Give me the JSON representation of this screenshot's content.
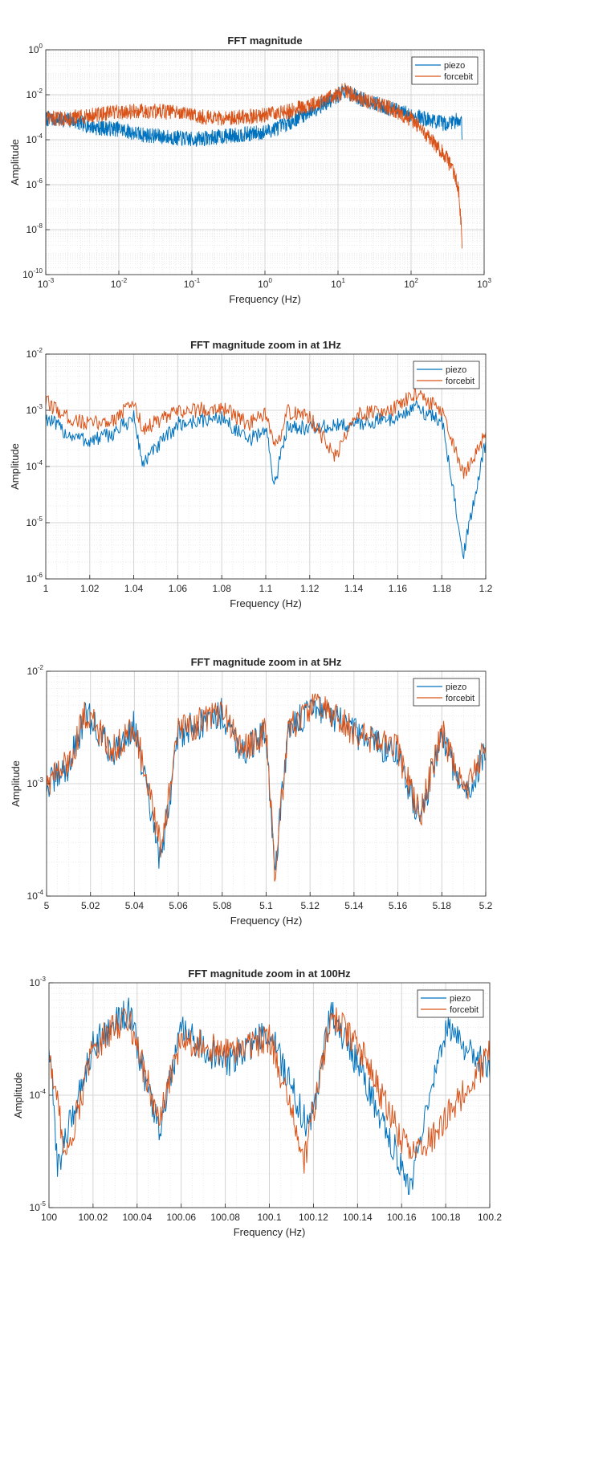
{
  "figure": {
    "legend_labels": [
      "piezo",
      "forcebit"
    ],
    "colors": {
      "piezo": "#0072BD",
      "forcebit": "#D95319",
      "grid_major": "#d4d4d4",
      "grid_minor": "#e6e6e6",
      "axis": "#262626"
    }
  },
  "chart_data": [
    {
      "type": "line",
      "title": "FFT magnitude",
      "xlabel": "Frequency (Hz)",
      "ylabel": "Amplitude",
      "xscale": "log",
      "yscale": "log",
      "xlim": [
        0.001,
        1000
      ],
      "ylim": [
        1e-10,
        1
      ],
      "xticks": [
        {
          "base": "10",
          "exp": "-3"
        },
        {
          "base": "10",
          "exp": "-2"
        },
        {
          "base": "10",
          "exp": "-1"
        },
        {
          "base": "10",
          "exp": "0"
        },
        {
          "base": "10",
          "exp": "1"
        },
        {
          "base": "10",
          "exp": "2"
        },
        {
          "base": "10",
          "exp": "3"
        }
      ],
      "yticks": [
        {
          "base": "10",
          "exp": "-10"
        },
        {
          "base": "10",
          "exp": "-8"
        },
        {
          "base": "10",
          "exp": "-6"
        },
        {
          "base": "10",
          "exp": "-4"
        },
        {
          "base": "10",
          "exp": "-2"
        },
        {
          "base": "10",
          "exp": "0"
        }
      ],
      "legend": "top-right",
      "grid": true,
      "series": [
        {
          "name": "piezo",
          "x": [
            0.001,
            0.002,
            0.005,
            0.01,
            0.02,
            0.05,
            0.1,
            0.2,
            0.5,
            1,
            2,
            5,
            10,
            12,
            20,
            50,
            100,
            200,
            300,
            400,
            450,
            490,
            500
          ],
          "y": [
            0.001,
            0.0009,
            0.0004,
            0.00035,
            0.0002,
            0.00015,
            0.00012,
            0.00015,
            0.0002,
            0.00025,
            0.0006,
            0.003,
            0.01,
            0.018,
            0.008,
            0.003,
            0.0015,
            0.0008,
            0.0006,
            0.0008,
            0.001,
            0.0008,
            0.0001
          ]
        },
        {
          "name": "forcebit",
          "x": [
            0.001,
            0.002,
            0.005,
            0.01,
            0.02,
            0.05,
            0.1,
            0.2,
            0.5,
            1,
            2,
            5,
            10,
            12,
            20,
            50,
            100,
            200,
            300,
            400,
            450,
            490,
            500
          ],
          "y": [
            0.001,
            0.001,
            0.0015,
            0.002,
            0.0022,
            0.002,
            0.0015,
            0.001,
            0.0012,
            0.0015,
            0.002,
            0.005,
            0.012,
            0.02,
            0.008,
            0.003,
            0.001,
            0.0001,
            2e-05,
            3e-06,
            5e-07,
            1e-08,
            2e-09
          ]
        }
      ]
    },
    {
      "type": "line",
      "title": "FFT magnitude zoom in at 1Hz",
      "xlabel": "Frequency (Hz)",
      "ylabel": "Amplitude",
      "xscale": "linear",
      "yscale": "log",
      "xlim": [
        1,
        1.2
      ],
      "ylim": [
        1e-06,
        0.01
      ],
      "xticks": [
        {
          "label": "1"
        },
        {
          "label": "1.02"
        },
        {
          "label": "1.04"
        },
        {
          "label": "1.06"
        },
        {
          "label": "1.08"
        },
        {
          "label": "1.1"
        },
        {
          "label": "1.12"
        },
        {
          "label": "1.14"
        },
        {
          "label": "1.16"
        },
        {
          "label": "1.18"
        },
        {
          "label": "1.2"
        }
      ],
      "yticks": [
        {
          "base": "10",
          "exp": "-6"
        },
        {
          "base": "10",
          "exp": "-5"
        },
        {
          "base": "10",
          "exp": "-4"
        },
        {
          "base": "10",
          "exp": "-3"
        },
        {
          "base": "10",
          "exp": "-2"
        }
      ],
      "legend": "top-right",
      "grid": true,
      "series": [
        {
          "name": "piezo",
          "x": [
            1,
            1.01,
            1.02,
            1.03,
            1.04,
            1.044,
            1.06,
            1.08,
            1.092,
            1.1,
            1.104,
            1.11,
            1.12,
            1.14,
            1.16,
            1.168,
            1.18,
            1.19,
            1.2
          ],
          "y": [
            0.0008,
            0.0004,
            0.0003,
            0.0004,
            0.0008,
            0.00012,
            0.0006,
            0.0008,
            0.0003,
            0.0005,
            5e-05,
            0.0006,
            0.0005,
            0.0006,
            0.0008,
            0.0012,
            0.0007,
            3e-06,
            0.0003
          ]
        },
        {
          "name": "forcebit",
          "x": [
            1,
            1.01,
            1.02,
            1.03,
            1.04,
            1.044,
            1.06,
            1.08,
            1.092,
            1.1,
            1.104,
            1.11,
            1.12,
            1.132,
            1.14,
            1.16,
            1.168,
            1.18,
            1.19,
            1.2
          ],
          "y": [
            0.0015,
            0.0008,
            0.0006,
            0.0007,
            0.0015,
            0.0005,
            0.001,
            0.0012,
            0.0006,
            0.0009,
            0.0002,
            0.001,
            0.0008,
            0.00015,
            0.0009,
            0.0012,
            0.0022,
            0.001,
            7e-05,
            0.0004
          ]
        }
      ]
    },
    {
      "type": "line",
      "title": "FFT magnitude zoom in at 5Hz",
      "xlabel": "Frequency (Hz)",
      "ylabel": "Amplitude",
      "xscale": "linear",
      "yscale": "log",
      "xlim": [
        5,
        5.2
      ],
      "ylim": [
        0.0001,
        0.01
      ],
      "xticks": [
        {
          "label": "5"
        },
        {
          "label": "5.02"
        },
        {
          "label": "5.04"
        },
        {
          "label": "5.06"
        },
        {
          "label": "5.08"
        },
        {
          "label": "5.1"
        },
        {
          "label": "5.12"
        },
        {
          "label": "5.14"
        },
        {
          "label": "5.16"
        },
        {
          "label": "5.18"
        },
        {
          "label": "5.2"
        }
      ],
      "yticks": [
        {
          "base": "10",
          "exp": "-4"
        },
        {
          "base": "10",
          "exp": "-3"
        },
        {
          "base": "10",
          "exp": "-2"
        }
      ],
      "legend": "top-right",
      "grid": true,
      "series": [
        {
          "name": "piezo",
          "x": [
            5,
            5.01,
            5.018,
            5.03,
            5.04,
            5.052,
            5.06,
            5.08,
            5.09,
            5.1,
            5.104,
            5.11,
            5.122,
            5.14,
            5.16,
            5.17,
            5.18,
            5.19,
            5.2
          ],
          "y": [
            0.001,
            0.0015,
            0.0045,
            0.002,
            0.0035,
            0.0002,
            0.003,
            0.0045,
            0.002,
            0.003,
            0.00018,
            0.003,
            0.0055,
            0.003,
            0.002,
            0.0005,
            0.003,
            0.0008,
            0.002
          ]
        },
        {
          "name": "forcebit",
          "x": [
            5,
            5.01,
            5.018,
            5.03,
            5.04,
            5.052,
            5.06,
            5.08,
            5.09,
            5.1,
            5.104,
            5.11,
            5.122,
            5.14,
            5.16,
            5.17,
            5.18,
            5.19,
            5.2
          ],
          "y": [
            0.0011,
            0.0016,
            0.0046,
            0.0021,
            0.0036,
            0.00028,
            0.0031,
            0.0046,
            0.0021,
            0.0031,
            0.00017,
            0.0031,
            0.0056,
            0.0031,
            0.0021,
            0.00055,
            0.0031,
            0.00085,
            0.0021
          ]
        }
      ]
    },
    {
      "type": "line",
      "title": "FFT magnitude zoom in at 100Hz",
      "xlabel": "Frequency (Hz)",
      "ylabel": "Amplitude",
      "xscale": "linear",
      "yscale": "log",
      "xlim": [
        100,
        100.2
      ],
      "ylim": [
        1e-05,
        0.001
      ],
      "xticks": [
        {
          "label": "100"
        },
        {
          "label": "100.02"
        },
        {
          "label": "100.04"
        },
        {
          "label": "100.06"
        },
        {
          "label": "100.08"
        },
        {
          "label": "100.1"
        },
        {
          "label": "100.12"
        },
        {
          "label": "100.14"
        },
        {
          "label": "100.16"
        },
        {
          "label": "100.18"
        },
        {
          "label": "100.2"
        }
      ],
      "yticks": [
        {
          "base": "10",
          "exp": "-5"
        },
        {
          "base": "10",
          "exp": "-4"
        },
        {
          "base": "10",
          "exp": "-3"
        }
      ],
      "legend": "top-right",
      "grid": true,
      "series": [
        {
          "name": "piezo",
          "x": [
            100,
            100.004,
            100.02,
            100.036,
            100.05,
            100.06,
            100.08,
            100.1,
            100.118,
            100.128,
            100.14,
            100.164,
            100.18,
            100.2
          ],
          "y": [
            0.0003,
            2.5e-05,
            0.0003,
            0.0006,
            5e-05,
            0.0004,
            0.0002,
            0.0004,
            5e-05,
            0.0006,
            0.0002,
            1.7e-05,
            0.0004,
            0.0002
          ]
        },
        {
          "name": "forcebit",
          "x": [
            100,
            100.008,
            100.02,
            100.036,
            100.05,
            100.06,
            100.08,
            100.1,
            100.116,
            100.128,
            100.14,
            100.164,
            100.176,
            100.2
          ],
          "y": [
            0.00025,
            3e-05,
            0.00028,
            0.00055,
            6e-05,
            0.00035,
            0.00025,
            0.00035,
            2.8e-05,
            0.00055,
            0.0003,
            3e-05,
            5e-05,
            0.00025
          ]
        }
      ]
    }
  ]
}
